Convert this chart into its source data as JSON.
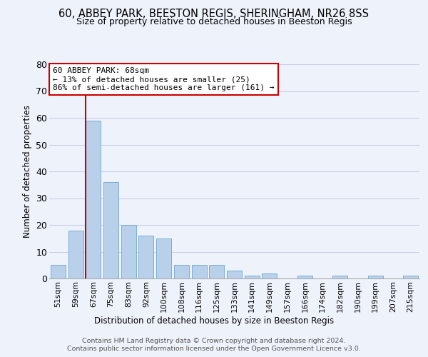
{
  "title1": "60, ABBEY PARK, BEESTON REGIS, SHERINGHAM, NR26 8SS",
  "title2": "Size of property relative to detached houses in Beeston Regis",
  "xlabel": "Distribution of detached houses by size in Beeston Regis",
  "ylabel": "Number of detached properties",
  "categories": [
    "51sqm",
    "59sqm",
    "67sqm",
    "75sqm",
    "83sqm",
    "92sqm",
    "100sqm",
    "108sqm",
    "116sqm",
    "125sqm",
    "133sqm",
    "141sqm",
    "149sqm",
    "157sqm",
    "166sqm",
    "174sqm",
    "182sqm",
    "190sqm",
    "199sqm",
    "207sqm",
    "215sqm"
  ],
  "values": [
    5,
    18,
    59,
    36,
    20,
    16,
    15,
    5,
    5,
    5,
    3,
    1,
    2,
    0,
    1,
    0,
    1,
    0,
    1,
    0,
    1
  ],
  "bar_color": "#b8d0ea",
  "bar_edge_color": "#7aafd4",
  "ylim": [
    0,
    80
  ],
  "yticks": [
    0,
    10,
    20,
    30,
    40,
    50,
    60,
    70,
    80
  ],
  "property_label": "60 ABBEY PARK: 68sqm",
  "annotation_line1": "← 13% of detached houses are smaller (25)",
  "annotation_line2": "86% of semi-detached houses are larger (161) →",
  "annotation_box_color": "#ffffff",
  "annotation_box_edge": "#cc0000",
  "red_line_color": "#cc0000",
  "footer1": "Contains HM Land Registry data © Crown copyright and database right 2024.",
  "footer2": "Contains public sector information licensed under the Open Government Licence v3.0.",
  "bg_color": "#eef2fb",
  "grid_color": "#c8cfe8"
}
